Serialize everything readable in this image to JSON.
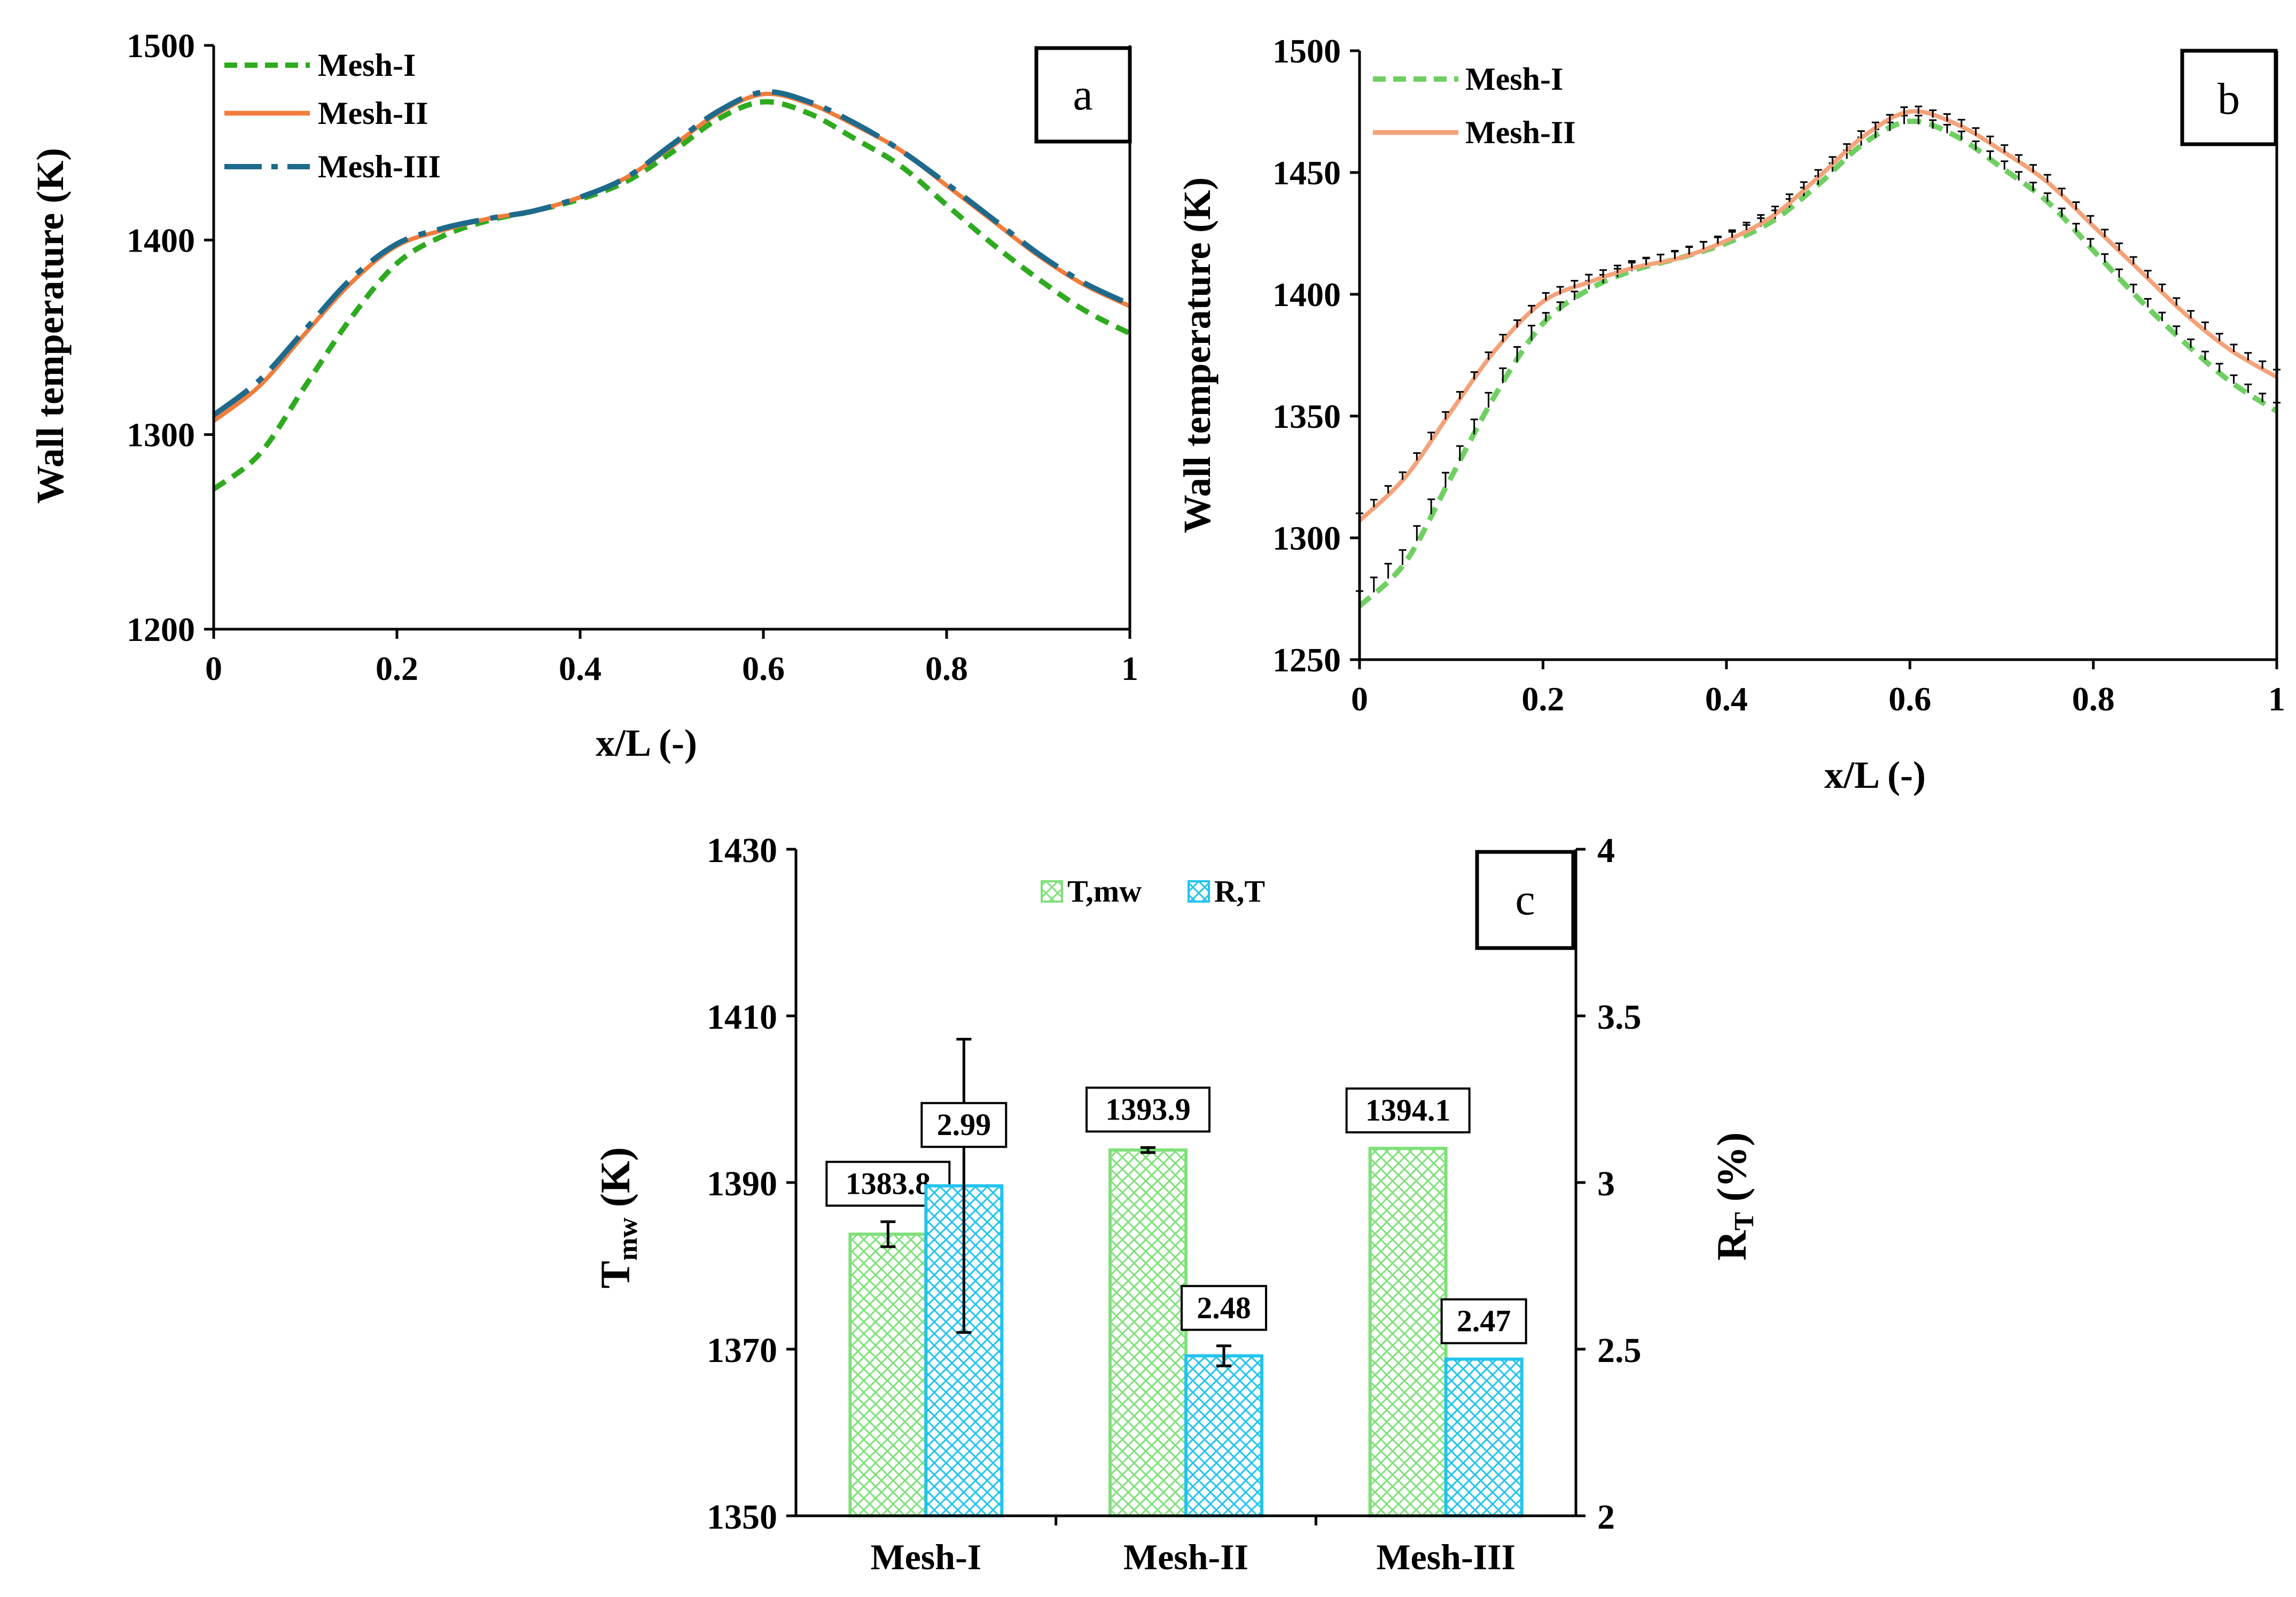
{
  "colors": {
    "mesh1": "#2eaa1e",
    "mesh2": "#f07d3c",
    "mesh3": "#1e6a8c",
    "mesh1_light": "#6fcf62",
    "mesh2_light": "#f4a27a",
    "bar_green": "#7fe07a",
    "bar_cyan": "#22c3ee",
    "errorbar": "#000000"
  },
  "chart_data": [
    {
      "id": "a",
      "type": "line",
      "panel_label": "a",
      "xlabel": "x/L (-)",
      "ylabel": "Wall temperature (K)",
      "xlim": [
        0,
        1
      ],
      "ylim": [
        1200,
        1500
      ],
      "x_ticks": [
        0,
        0.2,
        0.4,
        0.6,
        0.8,
        1
      ],
      "x_tick_labels": [
        "0",
        "0.2",
        "0.4",
        "0.6",
        "0.8",
        "1"
      ],
      "y_ticks": [
        1200,
        1300,
        1400,
        1500
      ],
      "y_tick_labels": [
        "1200",
        "1300",
        "1400",
        "1500"
      ],
      "legend_position": "top-left",
      "series": [
        {
          "name": "Mesh-I",
          "style": "dashed",
          "color_key": "mesh1",
          "x": [
            0,
            0.05,
            0.1,
            0.15,
            0.2,
            0.25,
            0.3,
            0.35,
            0.4,
            0.45,
            0.5,
            0.55,
            0.6,
            0.65,
            0.7,
            0.75,
            0.8,
            0.85,
            0.9,
            0.95,
            1
          ],
          "y": [
            1272,
            1290,
            1325,
            1360,
            1388,
            1402,
            1410,
            1415,
            1421,
            1430,
            1445,
            1462,
            1471,
            1465,
            1452,
            1438,
            1418,
            1398,
            1380,
            1364,
            1352
          ]
        },
        {
          "name": "Mesh-II",
          "style": "solid",
          "color_key": "mesh2",
          "x": [
            0,
            0.05,
            0.1,
            0.15,
            0.2,
            0.25,
            0.3,
            0.35,
            0.4,
            0.45,
            0.5,
            0.55,
            0.6,
            0.65,
            0.7,
            0.75,
            0.8,
            0.85,
            0.9,
            0.95,
            1
          ],
          "y": [
            1307,
            1325,
            1352,
            1378,
            1397,
            1405,
            1411,
            1415,
            1422,
            1432,
            1448,
            1465,
            1475,
            1470,
            1459,
            1446,
            1428,
            1410,
            1392,
            1377,
            1366
          ]
        },
        {
          "name": "Mesh-III",
          "style": "longdash",
          "color_key": "mesh3",
          "x": [
            0,
            0.05,
            0.1,
            0.15,
            0.2,
            0.25,
            0.3,
            0.35,
            0.4,
            0.45,
            0.5,
            0.55,
            0.6,
            0.65,
            0.7,
            0.75,
            0.8,
            0.85,
            0.9,
            0.95,
            1
          ],
          "y": [
            1310,
            1328,
            1354,
            1380,
            1398,
            1406,
            1411,
            1415,
            1422,
            1432,
            1449,
            1466,
            1476,
            1471,
            1460,
            1446,
            1429,
            1411,
            1393,
            1378,
            1367
          ]
        }
      ]
    },
    {
      "id": "b",
      "type": "line",
      "panel_label": "b",
      "xlabel": "x/L (-)",
      "ylabel": "Wall temperature (K)",
      "xlim": [
        0,
        1
      ],
      "ylim": [
        1250,
        1500
      ],
      "x_ticks": [
        0,
        0.2,
        0.4,
        0.6,
        0.8,
        1
      ],
      "x_tick_labels": [
        "0",
        "0.2",
        "0.4",
        "0.6",
        "0.8",
        "1"
      ],
      "y_ticks": [
        1250,
        1300,
        1350,
        1400,
        1450,
        1500
      ],
      "y_tick_labels": [
        "1250",
        "1300",
        "1350",
        "1400",
        "1450",
        "1500"
      ],
      "legend_position": "top-left",
      "error_bars": true,
      "series": [
        {
          "name": "Mesh-I",
          "style": "dashed",
          "color_key": "mesh1_light",
          "x": [
            0,
            0.05,
            0.1,
            0.15,
            0.2,
            0.25,
            0.3,
            0.35,
            0.4,
            0.45,
            0.5,
            0.55,
            0.6,
            0.65,
            0.7,
            0.75,
            0.8,
            0.85,
            0.9,
            0.95,
            1
          ],
          "y": [
            1272,
            1290,
            1325,
            1360,
            1388,
            1402,
            1410,
            1415,
            1421,
            1430,
            1445,
            1462,
            1471,
            1465,
            1452,
            1438,
            1418,
            1398,
            1380,
            1364,
            1352
          ]
        },
        {
          "name": "Mesh-II",
          "style": "solid",
          "color_key": "mesh2_light",
          "x": [
            0,
            0.05,
            0.1,
            0.15,
            0.2,
            0.25,
            0.3,
            0.35,
            0.4,
            0.45,
            0.5,
            0.55,
            0.6,
            0.65,
            0.7,
            0.75,
            0.8,
            0.85,
            0.9,
            0.95,
            1
          ],
          "y": [
            1307,
            1325,
            1352,
            1378,
            1397,
            1405,
            1411,
            1415,
            1422,
            1432,
            1448,
            1465,
            1475,
            1470,
            1459,
            1446,
            1428,
            1410,
            1392,
            1377,
            1366
          ]
        }
      ]
    },
    {
      "id": "c",
      "type": "bar",
      "panel_label": "c",
      "categories": [
        "Mesh-I",
        "Mesh-II",
        "Mesh-III"
      ],
      "ylabel_left_main": "T",
      "ylabel_left_sub": "mw",
      "ylabel_left_tail": " (K)",
      "ylabel_right_main": "R",
      "ylabel_right_sub": "T",
      "ylabel_right_tail": " (%)",
      "ylim_left": [
        1350,
        1430
      ],
      "ylim_right": [
        2,
        4
      ],
      "y_ticks_left": [
        1350,
        1370,
        1390,
        1410,
        1430
      ],
      "y_tick_labels_left": [
        "1350",
        "1370",
        "1390",
        "1410",
        "1430"
      ],
      "y_ticks_right": [
        2,
        2.5,
        3,
        3.5,
        4
      ],
      "y_tick_labels_right": [
        "2",
        "2.5",
        "3",
        "3.5",
        "4"
      ],
      "legend_position": "top-center",
      "series": [
        {
          "name": "T,mw",
          "axis": "left",
          "color_key": "bar_green",
          "values": [
            1383.8,
            1393.9,
            1394.1
          ],
          "labels": [
            "1383.8",
            "1393.9",
            "1394.1"
          ],
          "errors": [
            1.5,
            0.3,
            0
          ]
        },
        {
          "name": "R,T",
          "axis": "right",
          "color_key": "bar_cyan",
          "values": [
            2.99,
            2.48,
            2.47
          ],
          "labels": [
            "2.99",
            "2.48",
            "2.47"
          ],
          "errors": [
            0.44,
            0.03,
            0
          ]
        }
      ]
    }
  ]
}
